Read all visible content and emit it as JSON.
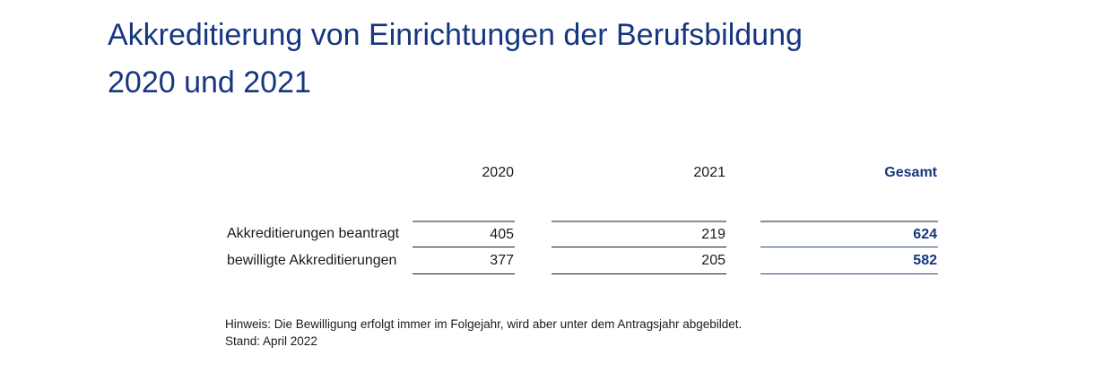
{
  "title": {
    "line1": "Akkreditierung von Einrichtungen der Berufsbildung",
    "line2": "2020 und 2021"
  },
  "table": {
    "column_headers": [
      "2020",
      "2021",
      "Gesamt"
    ],
    "rows": [
      {
        "label": "Akkreditierungen beantragt",
        "values": [
          "405",
          "219",
          "624"
        ]
      },
      {
        "label": "bewilligte Akkreditierungen",
        "values": [
          "377",
          "205",
          "582"
        ]
      }
    ]
  },
  "footnote": {
    "line1": "Hinweis: Die Bewilligung erfolgt immer im Folgejahr, wird aber unter dem Antragsjahr abgebildet.",
    "line2": "Stand: April 2022"
  },
  "colors": {
    "brand_navy": "#16367f",
    "text_black": "#1a1a1a",
    "rule_gray": "#8c8c8c",
    "rule_navy": "#2b4a8c"
  },
  "chart_data": {
    "type": "table",
    "title": "Akkreditierung von Einrichtungen der Berufsbildung 2020 und 2021",
    "categories": [
      "2020",
      "2021",
      "Gesamt"
    ],
    "series": [
      {
        "name": "Akkreditierungen beantragt",
        "values": [
          405,
          219,
          624
        ]
      },
      {
        "name": "bewilligte Akkreditierungen",
        "values": [
          377,
          205,
          582
        ]
      }
    ],
    "annotations": [
      "Hinweis: Die Bewilligung erfolgt immer im Folgejahr, wird aber unter dem Antragsjahr abgebildet.",
      "Stand: April 2022"
    ],
    "legend_position": "none",
    "grid": false
  }
}
